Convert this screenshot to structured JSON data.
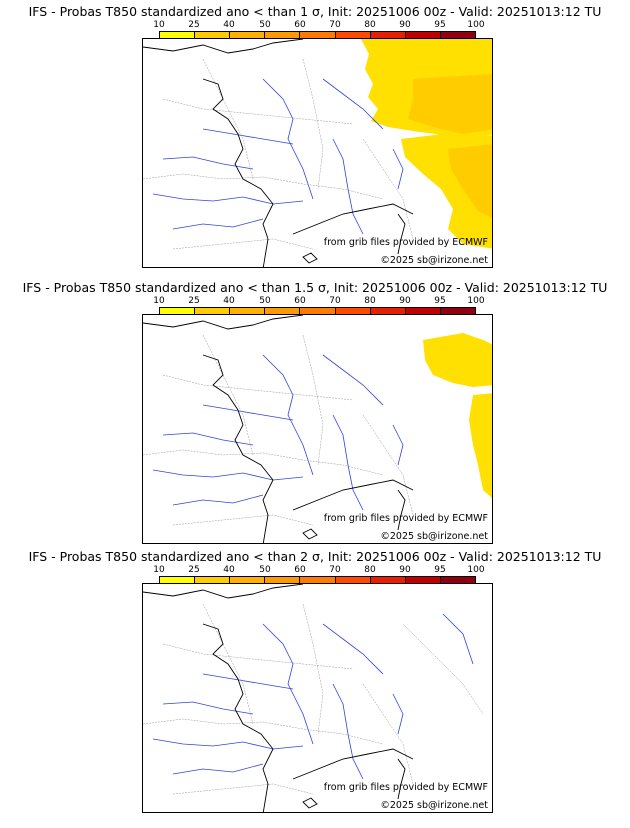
{
  "colorbar": {
    "ticks": [
      "10",
      "25",
      "40",
      "50",
      "60",
      "70",
      "80",
      "90",
      "95",
      "100"
    ],
    "colors": [
      "#ffff00",
      "#ffcc00",
      "#ffb000",
      "#ff9900",
      "#ff7a00",
      "#ff4a00",
      "#e81e00",
      "#c00000",
      "#900010",
      "#600010"
    ]
  },
  "panels": [
    {
      "title": "IFS - Probas T850  standardized ano < than 1 σ, Init: 20251006 00z - Valid: 20251013:12 TU",
      "source_credit": "from grib files provided by ECMWF",
      "copyright": "©2025 sb@irizone.net",
      "anomaly_sigma": 1
    },
    {
      "title": "IFS - Probas T850  standardized ano < than 1.5 σ, Init: 20251006 00z - Valid: 20251013:12 TU",
      "source_credit": "from grib files provided by ECMWF",
      "copyright": "©2025 sb@irizone.net",
      "anomaly_sigma": 1.5
    },
    {
      "title": "IFS - Probas T850  standardized ano < than 2 σ, Init: 20251006 00z - Valid: 20251013:12 TU",
      "source_credit": "from grib files provided by ECMWF",
      "copyright": "©2025 sb@irizone.net",
      "anomaly_sigma": 2
    }
  ]
}
